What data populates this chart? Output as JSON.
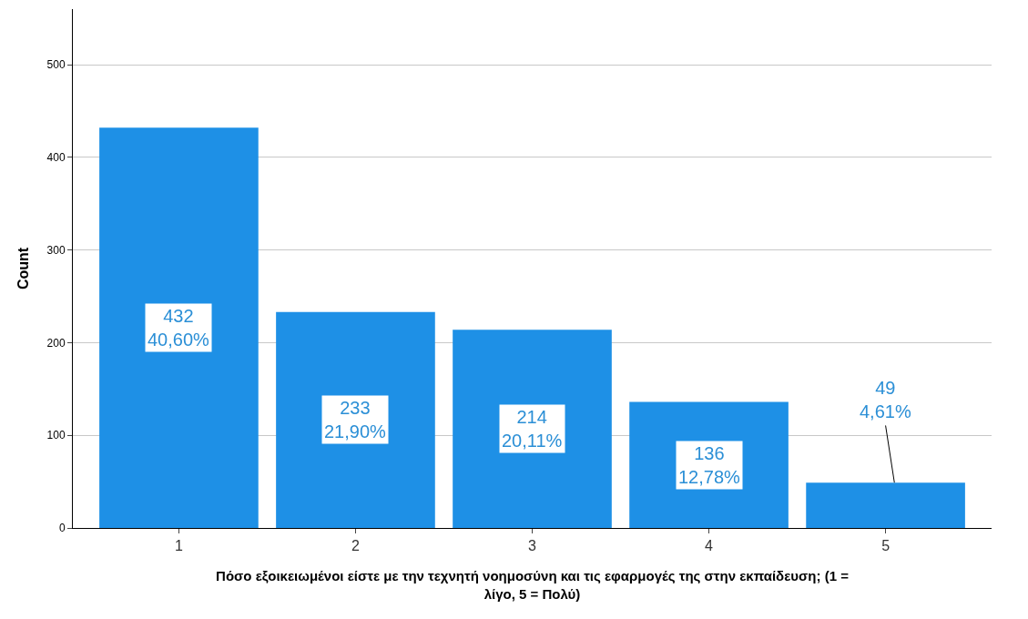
{
  "chart_data": {
    "type": "bar",
    "xlabel": "Πόσο εξοικειωμένοι είστε με την τεχνητή νοημοσύνη και τις εφαρμογές της στην εκπαίδευση; (1 =\nλίγο, 5 = Πολύ)",
    "ylabel": "Count",
    "categories": [
      "1",
      "2",
      "3",
      "4",
      "5"
    ],
    "values": [
      432,
      233,
      214,
      136,
      49
    ],
    "value_labels": [
      "432\n40,60%",
      "233\n21,90%",
      "214\n20,11%",
      "136\n12,78%",
      "49\n4,61%"
    ],
    "color": "#1e90e6",
    "ylim": [
      0,
      560
    ],
    "yticks": [
      0,
      100,
      200,
      300,
      400,
      500
    ],
    "grid": "y"
  }
}
